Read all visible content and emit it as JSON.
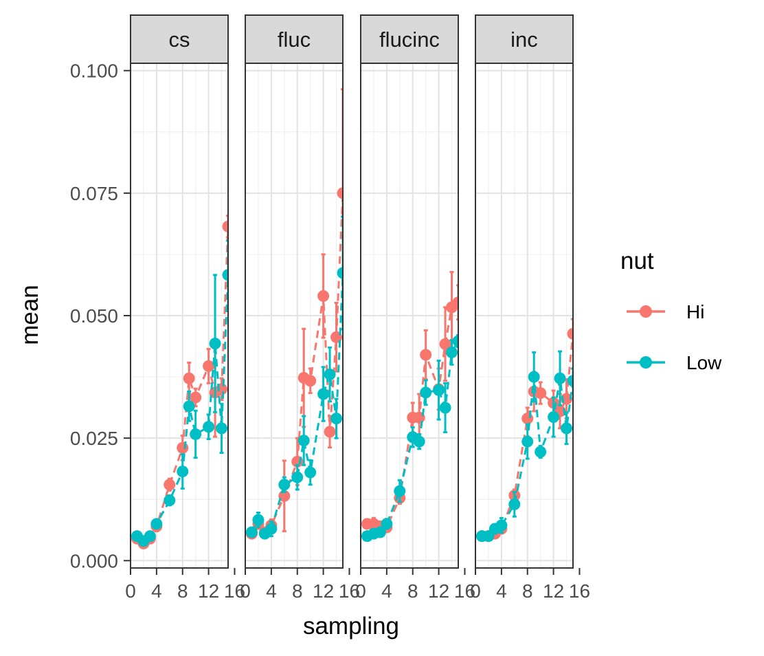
{
  "chart_data": {
    "type": "line",
    "xlabel": "sampling",
    "ylabel": "mean",
    "xlim": [
      0,
      15
    ],
    "ylim": [
      -0.0015,
      0.1015
    ],
    "x_ticks": [
      0,
      4,
      8,
      12,
      16
    ],
    "x_tick_labels": [
      "0",
      "4",
      "8",
      "12",
      "16"
    ],
    "y_ticks": [
      0,
      0.025,
      0.05,
      0.075,
      0.1
    ],
    "y_tick_labels": [
      "0.000",
      "0.025",
      "0.050",
      "0.075",
      "0.100"
    ],
    "grid": true,
    "legend": {
      "title": "nut",
      "position": "right",
      "entries": [
        {
          "name": "Hi",
          "color": "#F8766D"
        },
        {
          "name": "Low",
          "color": "#00BFC4"
        }
      ]
    },
    "facets": [
      {
        "label": "cs",
        "series": [
          {
            "name": "Hi",
            "color": "#F8766D",
            "x": [
              1,
              2,
              3,
              4,
              6,
              8,
              9,
              10,
              12,
              13,
              14,
              15
            ],
            "y": [
              0.0045,
              0.0035,
              0.0045,
              0.007,
              0.0155,
              0.023,
              0.0372,
              0.0333,
              0.0397,
              0.0343,
              0.035,
              0.0682
            ],
            "err": [
              0.0006,
              0.0006,
              0.0006,
              0.001,
              0.0012,
              0.0025,
              0.0032,
              0.0018,
              0.0035,
              0.009,
              0.0022,
              0.0022
            ]
          },
          {
            "name": "Low",
            "color": "#00BFC4",
            "x": [
              1,
              2,
              3,
              4,
              6,
              8,
              9,
              10,
              12,
              13,
              14,
              15
            ],
            "y": [
              0.005,
              0.004,
              0.005,
              0.0075,
              0.0123,
              0.0182,
              0.0315,
              0.0258,
              0.0273,
              0.0443,
              0.027,
              0.0583
            ],
            "err": [
              0.0006,
              0.0006,
              0.0006,
              0.0008,
              0.001,
              0.0035,
              0.003,
              0.0048,
              0.0025,
              0.014,
              0.005,
              0.007
            ]
          }
        ]
      },
      {
        "label": "fluc",
        "series": [
          {
            "name": "Hi",
            "color": "#F8766D",
            "x": [
              1,
              2,
              3,
              4,
              6,
              8,
              9,
              10,
              12,
              13,
              14,
              15
            ],
            "y": [
              0.0055,
              0.0075,
              0.0058,
              0.0072,
              0.0132,
              0.0202,
              0.0373,
              0.0367,
              0.054,
              0.0263,
              0.0456,
              0.075
            ],
            "err": [
              0.0006,
              0.001,
              0.0008,
              0.0012,
              0.0072,
              0.0048,
              0.01,
              0.0025,
              0.0085,
              0.0032,
              0.007,
              0.0212
            ]
          },
          {
            "name": "Low",
            "color": "#00BFC4",
            "x": [
              1,
              2,
              3,
              4,
              6,
              8,
              9,
              10,
              12,
              13,
              14,
              15
            ],
            "y": [
              0.0058,
              0.0083,
              0.0055,
              0.0065,
              0.0155,
              0.017,
              0.0245,
              0.018,
              0.034,
              0.038,
              0.029,
              0.0587
            ],
            "err": [
              0.0006,
              0.0015,
              0.0008,
              0.0015,
              0.0015,
              0.0025,
              0.005,
              0.0025,
              0.0055,
              0.0055,
              0.004,
              0.0115
            ]
          }
        ]
      },
      {
        "label": "flucinc",
        "series": [
          {
            "name": "Hi",
            "color": "#F8766D",
            "x": [
              1,
              2,
              3,
              4,
              6,
              8,
              9,
              10,
              12,
              13,
              14,
              15
            ],
            "y": [
              0.0075,
              0.0075,
              0.007,
              0.0068,
              0.0128,
              0.0292,
              0.0292,
              0.042,
              0.035,
              0.0442,
              0.0517,
              0.0527
            ],
            "err": [
              0.0008,
              0.0012,
              0.0008,
              0.0008,
              0.0012,
              0.003,
              0.0048,
              0.005,
              0.0042,
              0.0075,
              0.0072,
              0.0035
            ]
          },
          {
            "name": "Low",
            "color": "#00BFC4",
            "x": [
              1,
              2,
              3,
              4,
              6,
              8,
              9,
              10,
              12,
              13,
              14,
              15
            ],
            "y": [
              0.005,
              0.0055,
              0.0058,
              0.0075,
              0.0142,
              0.0252,
              0.0243,
              0.0343,
              0.0348,
              0.0312,
              0.0425,
              0.0448
            ],
            "err": [
              0.0006,
              0.0008,
              0.0008,
              0.001,
              0.0022,
              0.002,
              0.0015,
              0.0025,
              0.006,
              0.005,
              0.0025,
              0.0012
            ]
          }
        ]
      },
      {
        "label": "inc",
        "series": [
          {
            "name": "Hi",
            "color": "#F8766D",
            "x": [
              1,
              2,
              3,
              4,
              6,
              8,
              9,
              10,
              12,
              13,
              14,
              15
            ],
            "y": [
              0.005,
              0.005,
              0.0055,
              0.0065,
              0.0133,
              0.029,
              0.0345,
              0.0342,
              0.0322,
              0.0305,
              0.033,
              0.0463
            ],
            "err": [
              0.0006,
              0.0006,
              0.0008,
              0.0008,
              0.0012,
              0.0022,
              0.004,
              0.0022,
              0.0025,
              0.0035,
              0.004,
              0.003
            ]
          },
          {
            "name": "Low",
            "color": "#00BFC4",
            "x": [
              1,
              2,
              3,
              4,
              6,
              8,
              9,
              10,
              12,
              13,
              14,
              15
            ],
            "y": [
              0.005,
              0.005,
              0.0065,
              0.0072,
              0.0115,
              0.0243,
              0.0375,
              0.0222,
              0.0293,
              0.0372,
              0.027,
              0.0367
            ],
            "err": [
              0.0006,
              0.0006,
              0.0008,
              0.0015,
              0.0025,
              0.0035,
              0.005,
              0.0012,
              0.004,
              0.0055,
              0.0032,
              0.0025
            ]
          }
        ]
      }
    ]
  }
}
